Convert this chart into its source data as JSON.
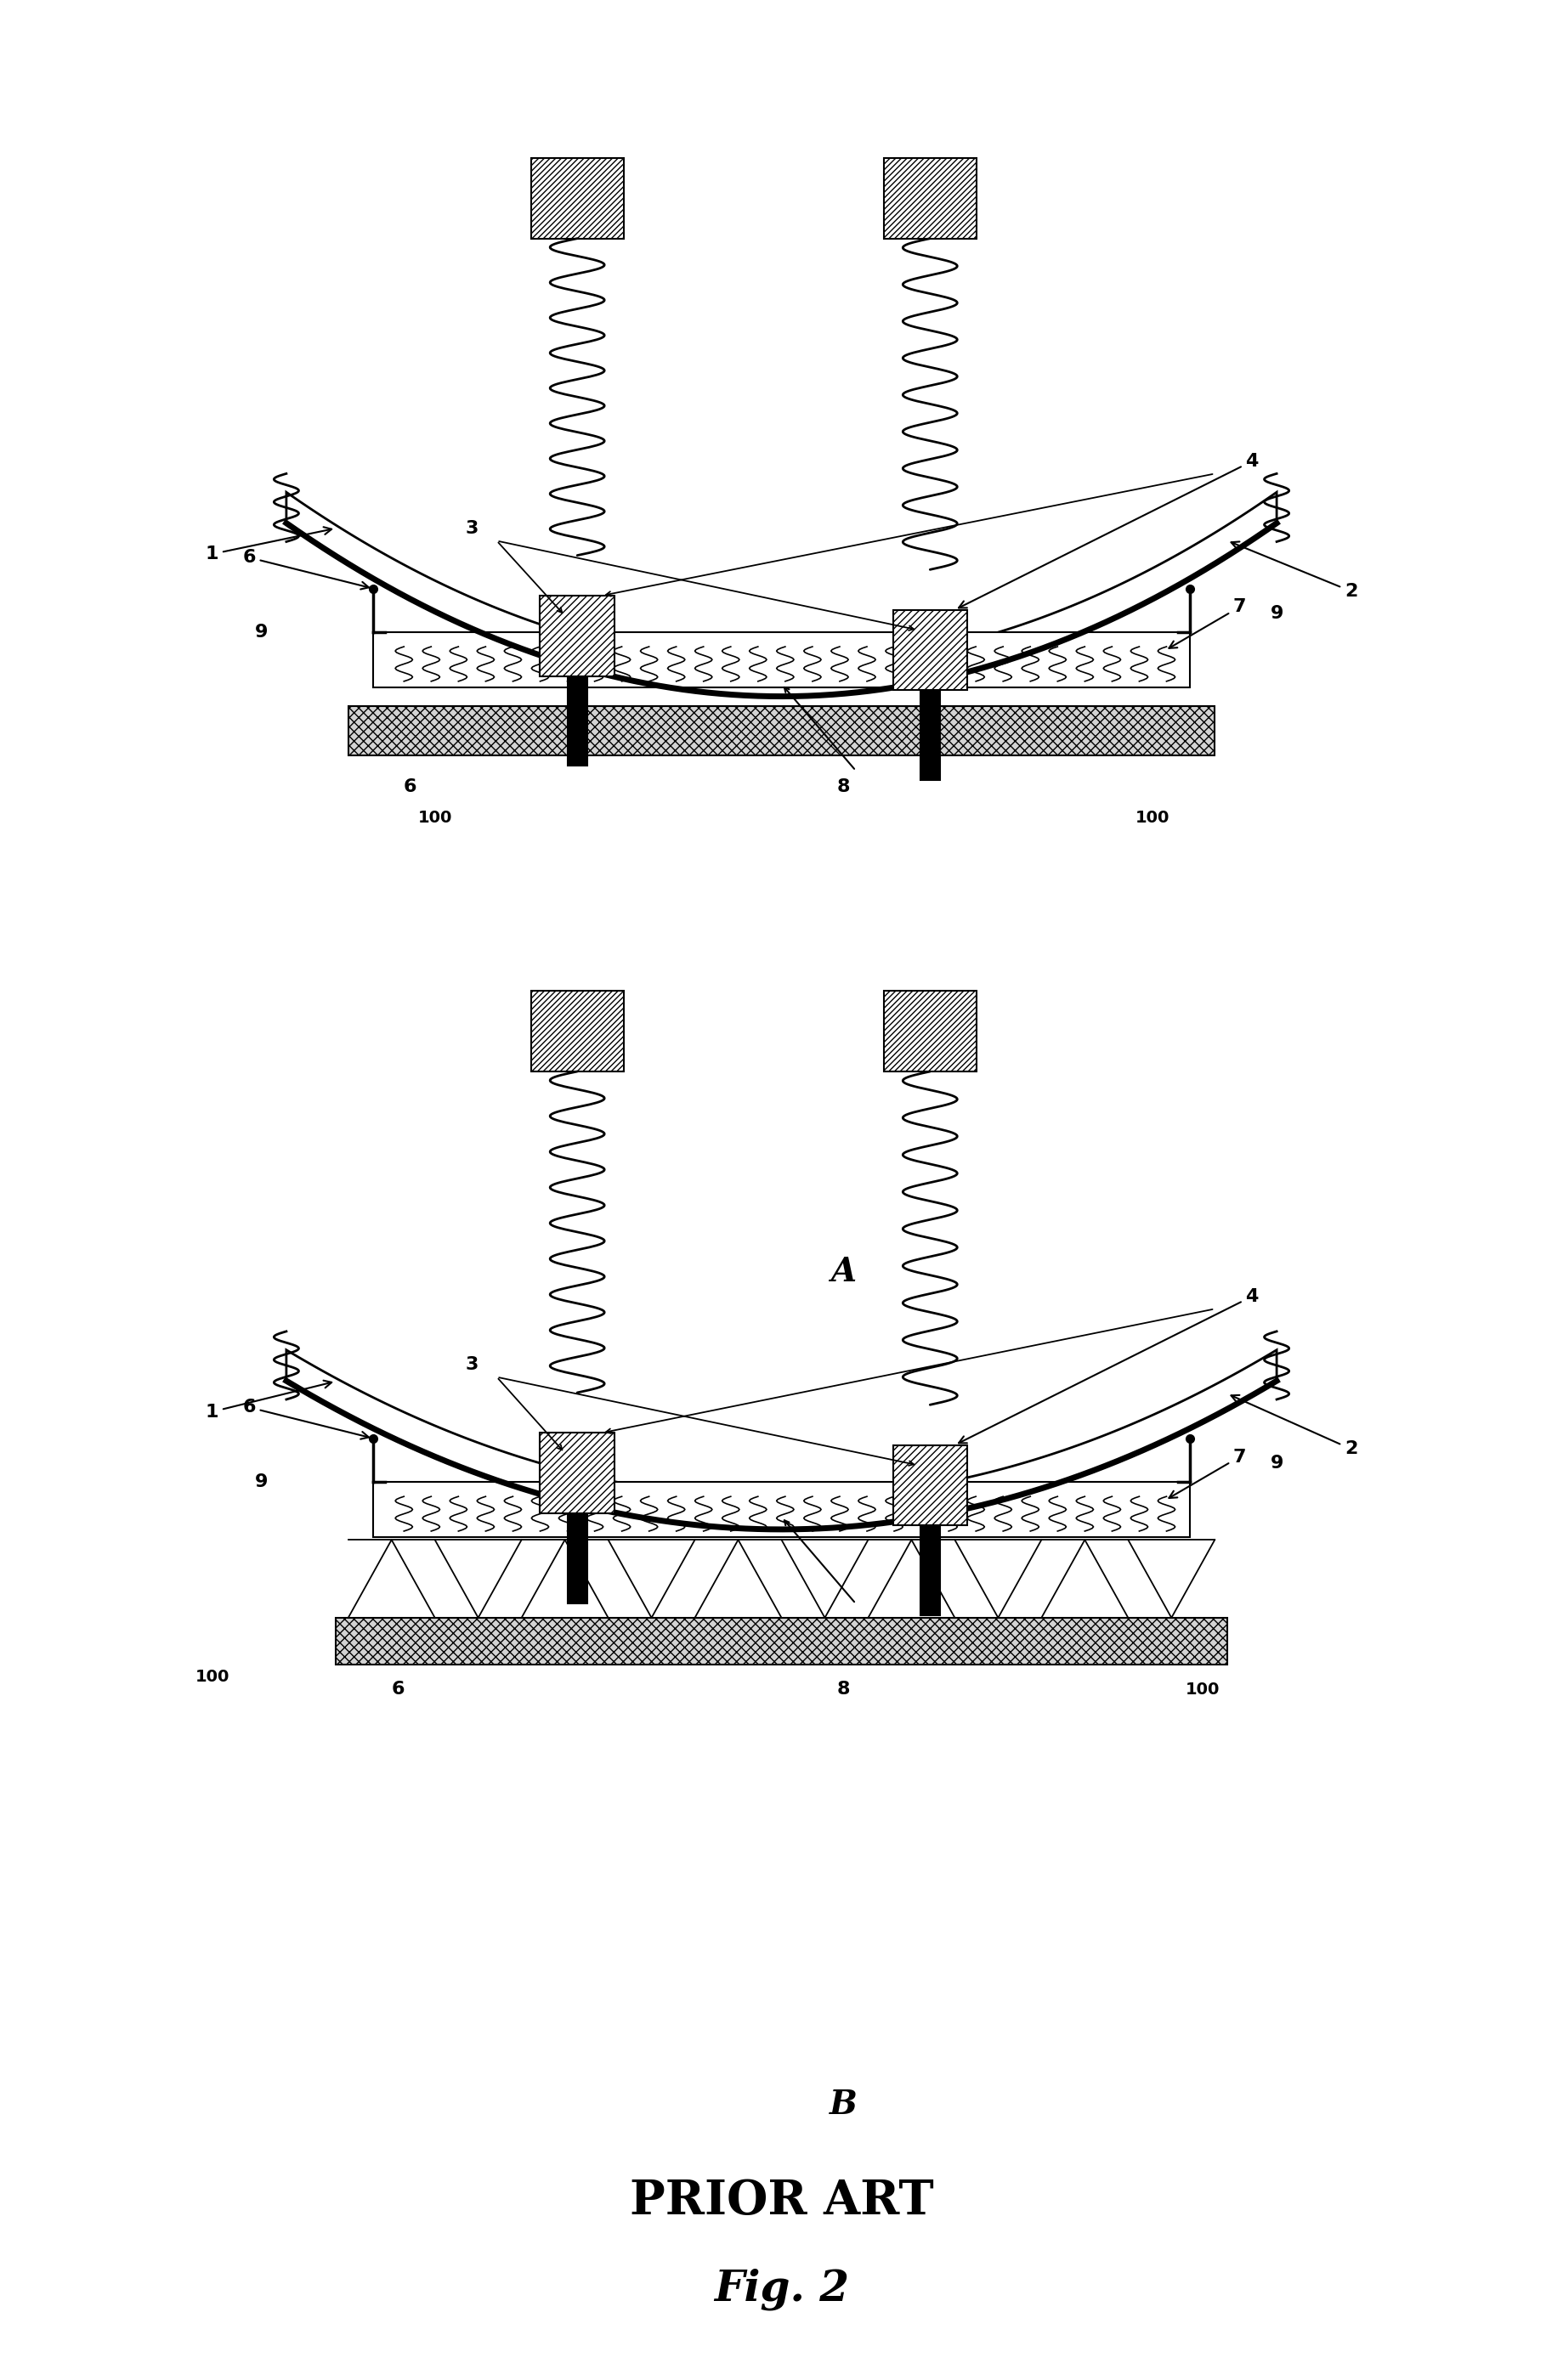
{
  "title": "Fig. 2",
  "subtitle": "PRIOR ART",
  "label_A": "A",
  "label_B": "B",
  "bg_color": "#ffffff",
  "font_size_labels": 16,
  "font_size_AB": 28,
  "font_size_prior": 40,
  "font_size_title": 36
}
